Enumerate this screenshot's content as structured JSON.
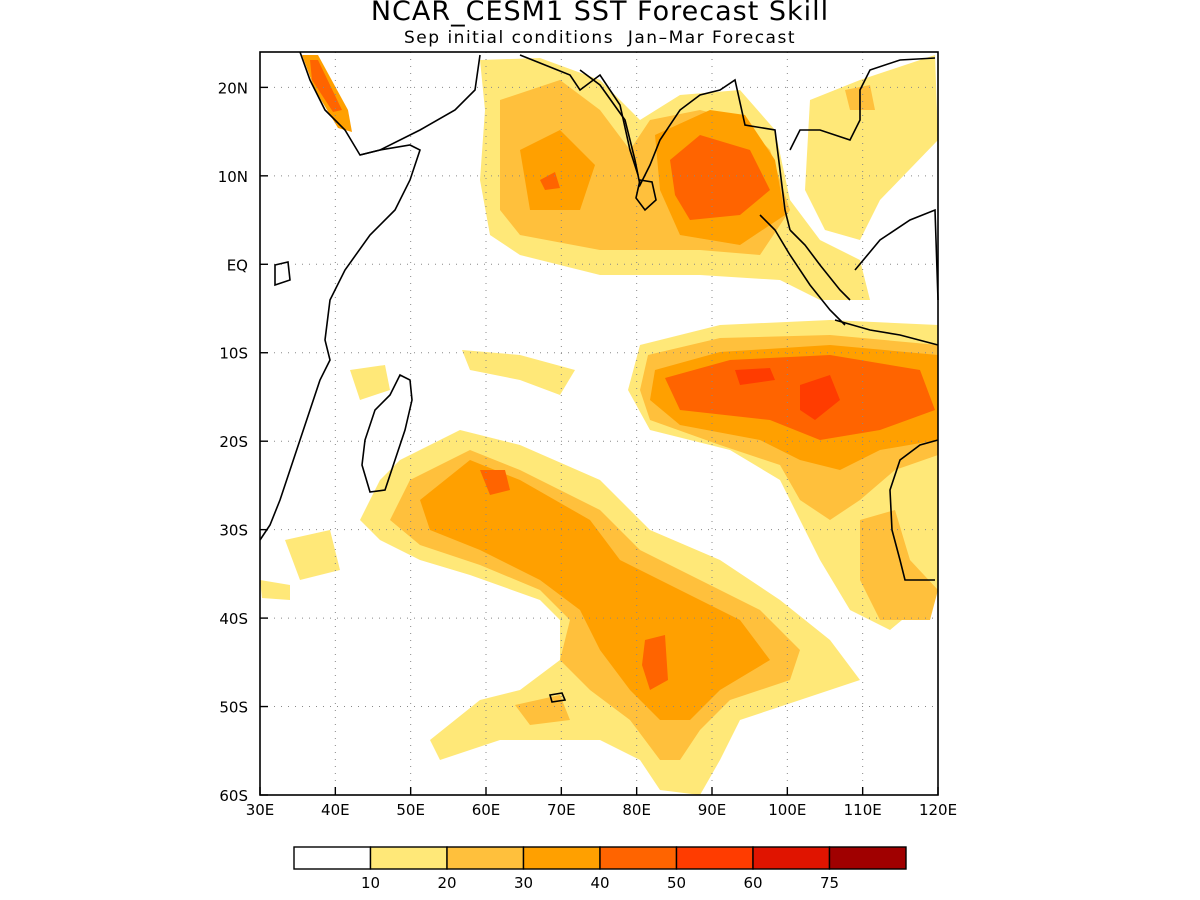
{
  "title": "NCAR_CESM1 SST Forecast Skill",
  "subtitle": "Sep initial conditions  Jan–Mar Forecast",
  "map": {
    "lon_range": [
      30,
      120
    ],
    "lat_range": [
      -60,
      24
    ],
    "lon_ticks": [
      "30E",
      "40E",
      "50E",
      "60E",
      "70E",
      "80E",
      "90E",
      "100E",
      "110E",
      "120E"
    ],
    "lat_ticks": [
      "20N",
      "10N",
      "EQ",
      "10S",
      "20S",
      "30S",
      "40S",
      "50S",
      "60S"
    ],
    "grid": "dotted"
  },
  "colorbar": {
    "colors": [
      "#ffffff",
      "#ffe878",
      "#ffc03c",
      "#ffa000",
      "#ff6400",
      "#ff3c00",
      "#e01400",
      "#a00000"
    ],
    "labels": [
      "10",
      "20",
      "30",
      "40",
      "50",
      "60",
      "75"
    ]
  }
}
